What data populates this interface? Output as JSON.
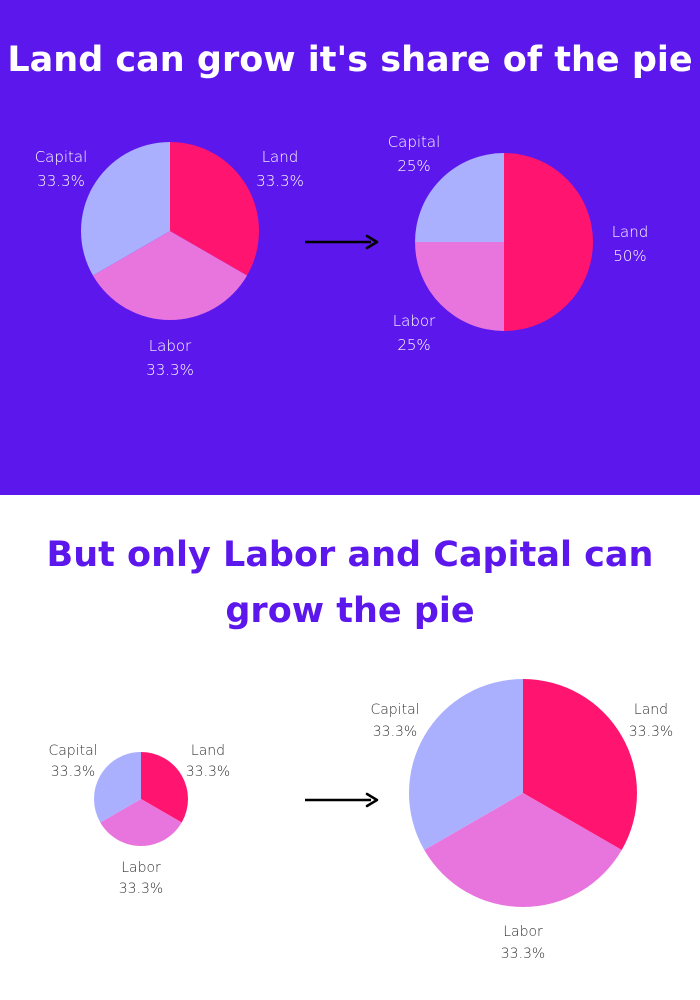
{
  "titles": {
    "top": "Land can grow it's share of the pie",
    "bottom_line1": "But only Labor and Capital can",
    "bottom_line2": "grow the pie"
  },
  "colors": {
    "land": "#ff1470",
    "labor": "#e874dd",
    "capital": "#aab0fd",
    "top_background": "#5c17ec",
    "bottom_background": "#ffffff",
    "arrow": "#000000"
  },
  "chart_data": [
    {
      "type": "pie",
      "slices": [
        {
          "label": "Land",
          "value": 33.3,
          "value_label": "33.3%"
        },
        {
          "label": "Labor",
          "value": 33.3,
          "value_label": "33.3%"
        },
        {
          "label": "Capital",
          "value": 33.3,
          "value_label": "33.3%"
        }
      ]
    },
    {
      "type": "pie",
      "slices": [
        {
          "label": "Land",
          "value": 50,
          "value_label": "50%"
        },
        {
          "label": "Labor",
          "value": 25,
          "value_label": "25%"
        },
        {
          "label": "Capital",
          "value": 25,
          "value_label": "25%"
        }
      ]
    },
    {
      "type": "pie",
      "slices": [
        {
          "label": "Land",
          "value": 33.3,
          "value_label": "33.3%"
        },
        {
          "label": "Labor",
          "value": 33.3,
          "value_label": "33.3%"
        },
        {
          "label": "Capital",
          "value": 33.3,
          "value_label": "33.3%"
        }
      ]
    },
    {
      "type": "pie",
      "slices": [
        {
          "label": "Land",
          "value": 33.3,
          "value_label": "33.3%"
        },
        {
          "label": "Labor",
          "value": 33.3,
          "value_label": "33.3%"
        },
        {
          "label": "Capital",
          "value": 33.3,
          "value_label": "33.3%"
        }
      ]
    }
  ]
}
